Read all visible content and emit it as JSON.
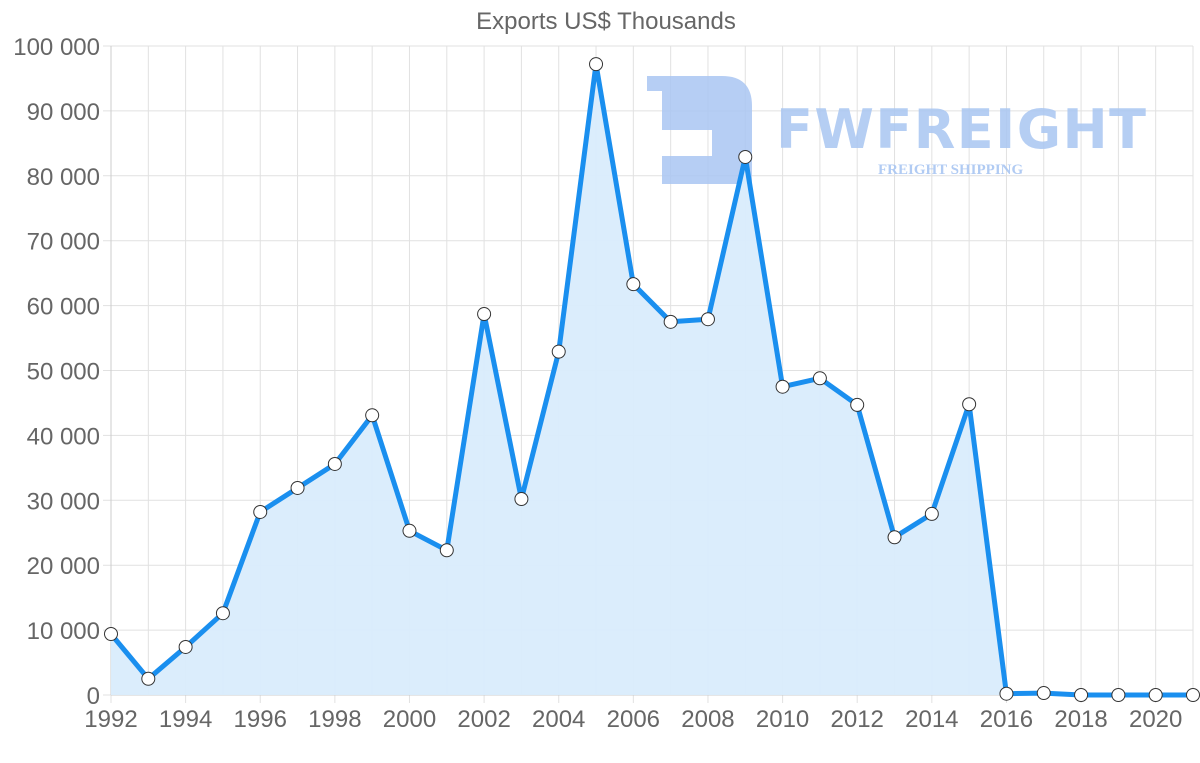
{
  "chart_data": {
    "type": "area",
    "title": "Exports US$ Thousands",
    "xlabel": "",
    "ylabel": "",
    "ylim": [
      0,
      100000
    ],
    "xlim": [
      1992,
      2021
    ],
    "grid": true,
    "legend": null,
    "y_ticks": [
      "0",
      "10 000",
      "20 000",
      "30 000",
      "40 000",
      "50 000",
      "60 000",
      "70 000",
      "80 000",
      "90 000",
      "100 000"
    ],
    "x_ticks": [
      "1992",
      "1994",
      "1996",
      "1998",
      "2000",
      "2002",
      "2004",
      "2006",
      "2008",
      "2010",
      "2012",
      "2014",
      "2016",
      "2018",
      "2020"
    ],
    "x": [
      1992,
      1993,
      1994,
      1995,
      1996,
      1997,
      1998,
      1999,
      2000,
      2001,
      2002,
      2003,
      2004,
      2005,
      2006,
      2007,
      2008,
      2009,
      2010,
      2011,
      2012,
      2013,
      2014,
      2015,
      2016,
      2017,
      2018,
      2019,
      2020,
      2021
    ],
    "series": [
      {
        "name": "Exports US$ Thousands",
        "values": [
          9400,
          2500,
          7400,
          12600,
          28200,
          31900,
          35600,
          43100,
          25300,
          22300,
          58700,
          30200,
          52900,
          97200,
          63300,
          57500,
          57900,
          82900,
          47500,
          48800,
          44700,
          24300,
          27900,
          44800,
          200,
          300,
          0,
          0,
          0,
          0
        ]
      }
    ],
    "colors": {
      "line": "#1a8fef",
      "fill": "#d9ecfc",
      "point_fill": "#ffffff",
      "point_stroke": "#333333"
    }
  },
  "watermark": {
    "brand": "FWFREIGHT",
    "tagline": "FREIGHT SHIPPING",
    "color": "#a9c6f2"
  }
}
